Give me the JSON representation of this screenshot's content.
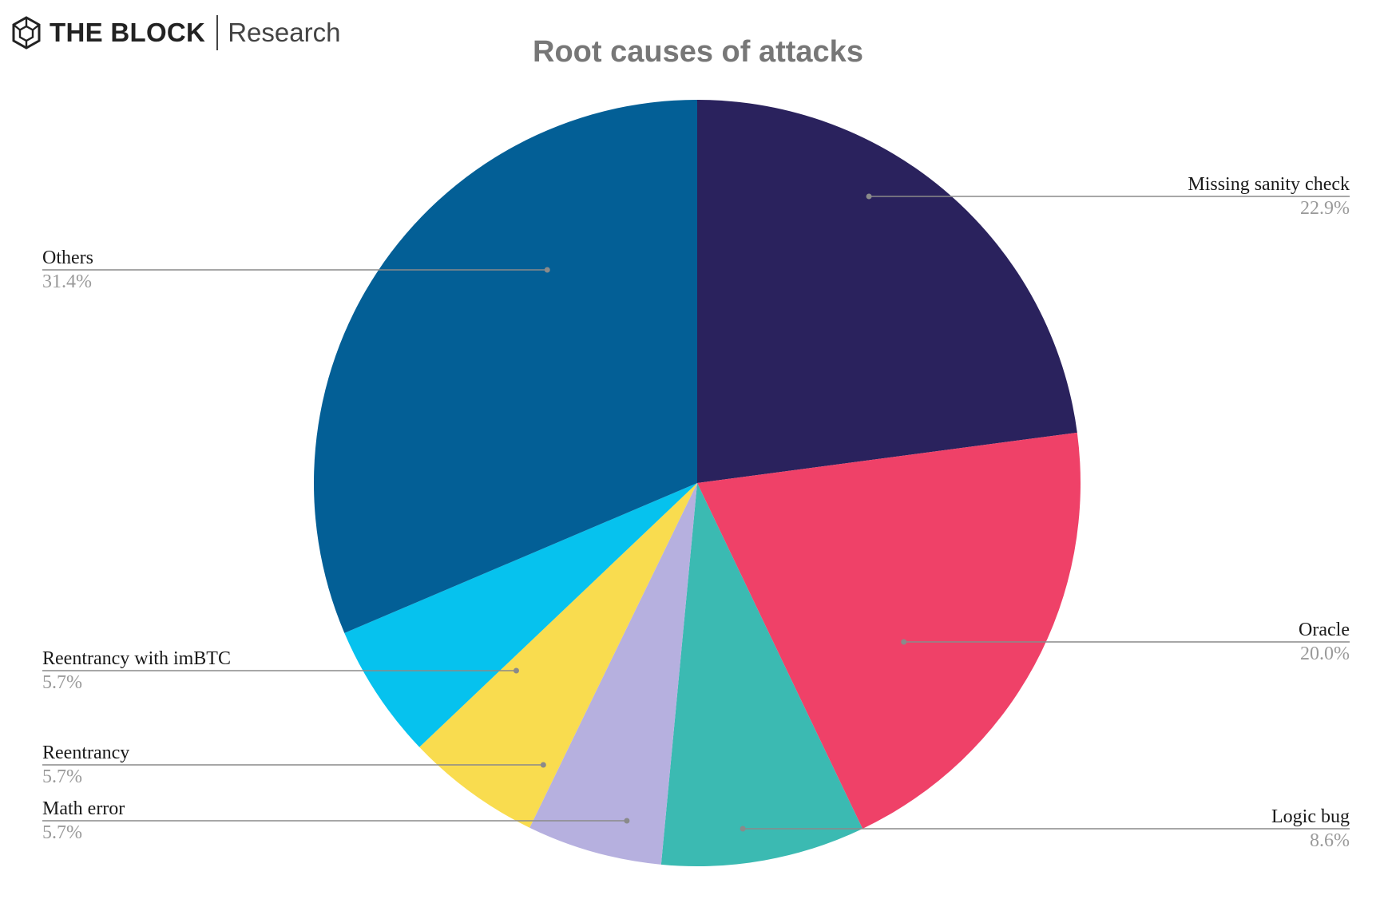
{
  "brand": {
    "name": "THE BLOCK",
    "sub": "Research",
    "logo_icon": "hexagon-cube-icon"
  },
  "chart_data": {
    "type": "pie",
    "title": "Root causes of attacks",
    "unit": "%",
    "slices": [
      {
        "label": "Missing sanity check",
        "value": 22.9,
        "display": "22.9%",
        "color": "#2a225d",
        "label_side": "right"
      },
      {
        "label": "Oracle",
        "value": 20.0,
        "display": "20.0%",
        "color": "#ef4168",
        "label_side": "right"
      },
      {
        "label": "Logic bug",
        "value": 8.6,
        "display": "8.6%",
        "color": "#3bbab2",
        "label_side": "right"
      },
      {
        "label": "Math error",
        "value": 5.7,
        "display": "5.7%",
        "color": "#b6b0df",
        "label_side": "left"
      },
      {
        "label": "Reentrancy",
        "value": 5.7,
        "display": "5.7%",
        "color": "#f9dc4f",
        "label_side": "left"
      },
      {
        "label": "Reentrancy with imBTC",
        "value": 5.7,
        "display": "5.7%",
        "color": "#06c2ee",
        "label_side": "left"
      },
      {
        "label": "Others",
        "value": 31.4,
        "display": "31.4%",
        "color": "#035f96",
        "label_side": "left"
      }
    ],
    "start_angle": "12 o'clock",
    "direction": "clockwise"
  }
}
